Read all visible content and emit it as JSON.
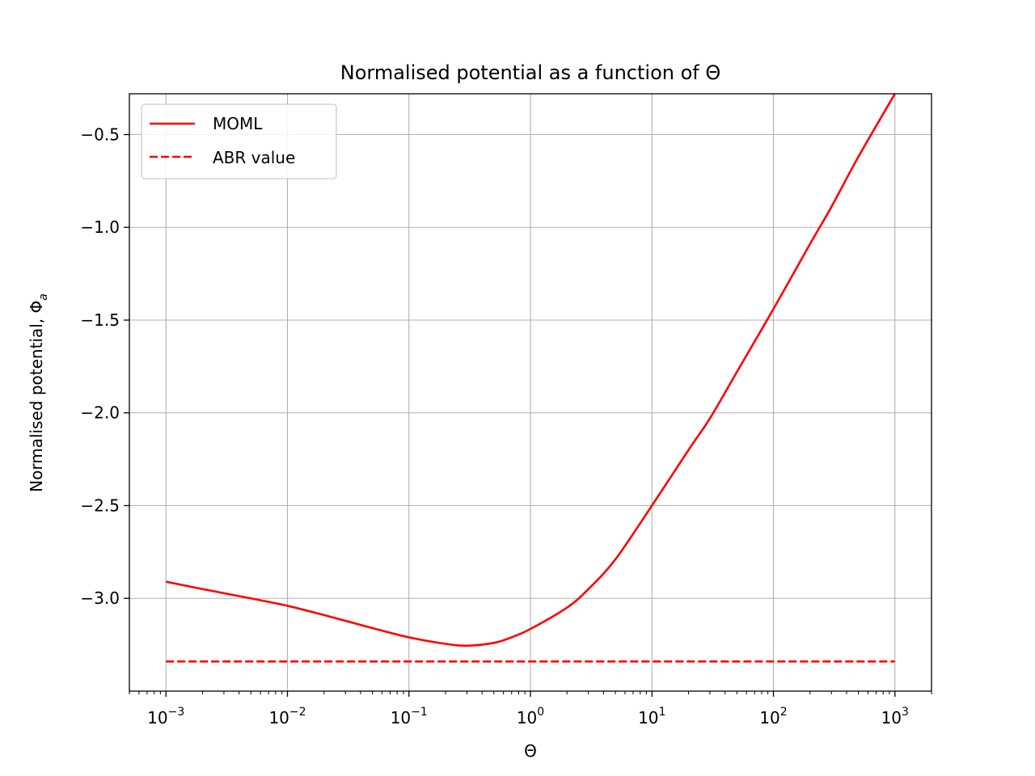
{
  "chart_data": {
    "type": "line",
    "title": "Normalised potential as a function of Θ",
    "xlabel": "Θ",
    "ylabel": "Normalised potential, Φ",
    "ylabel_sub": "a",
    "xscale": "log",
    "xlim": [
      0.0005,
      2000
    ],
    "ylim": [
      -3.5,
      -0.28
    ],
    "x_ticks": [
      {
        "base": "10",
        "exp": "−3",
        "value": 0.001
      },
      {
        "base": "10",
        "exp": "−2",
        "value": 0.01
      },
      {
        "base": "10",
        "exp": "−1",
        "value": 0.1
      },
      {
        "base": "10",
        "exp": "0",
        "value": 1
      },
      {
        "base": "10",
        "exp": "1",
        "value": 10
      },
      {
        "base": "10",
        "exp": "2",
        "value": 100
      },
      {
        "base": "10",
        "exp": "3",
        "value": 1000
      }
    ],
    "y_ticks": [
      {
        "label": "−0.5",
        "value": -0.5
      },
      {
        "label": "−1.0",
        "value": -1.0
      },
      {
        "label": "−1.5",
        "value": -1.5
      },
      {
        "label": "−2.0",
        "value": -2.0
      },
      {
        "label": "−2.5",
        "value": -2.5
      },
      {
        "label": "−3.0",
        "value": -3.0
      }
    ],
    "grid": true,
    "legend_position": "top-left",
    "series": [
      {
        "name": "MOML",
        "style": "solid",
        "color": "#ff0000",
        "x": [
          0.001,
          0.002,
          0.005,
          0.01,
          0.02,
          0.05,
          0.1,
          0.2,
          0.3,
          0.5,
          0.7,
          1,
          2,
          3,
          5,
          10,
          20,
          30,
          50,
          100,
          200,
          300,
          500,
          1000
        ],
        "y": [
          -2.91,
          -2.95,
          -3.0,
          -3.04,
          -3.09,
          -3.16,
          -3.21,
          -3.245,
          -3.255,
          -3.24,
          -3.21,
          -3.165,
          -3.05,
          -2.95,
          -2.79,
          -2.5,
          -2.2,
          -2.03,
          -1.78,
          -1.44,
          -1.09,
          -0.89,
          -0.62,
          -0.28
        ]
      },
      {
        "name": "ABR value",
        "style": "dashed",
        "color": "#ff0000",
        "x": [
          0.001,
          1000
        ],
        "y": [
          -3.34,
          -3.34
        ]
      }
    ]
  }
}
